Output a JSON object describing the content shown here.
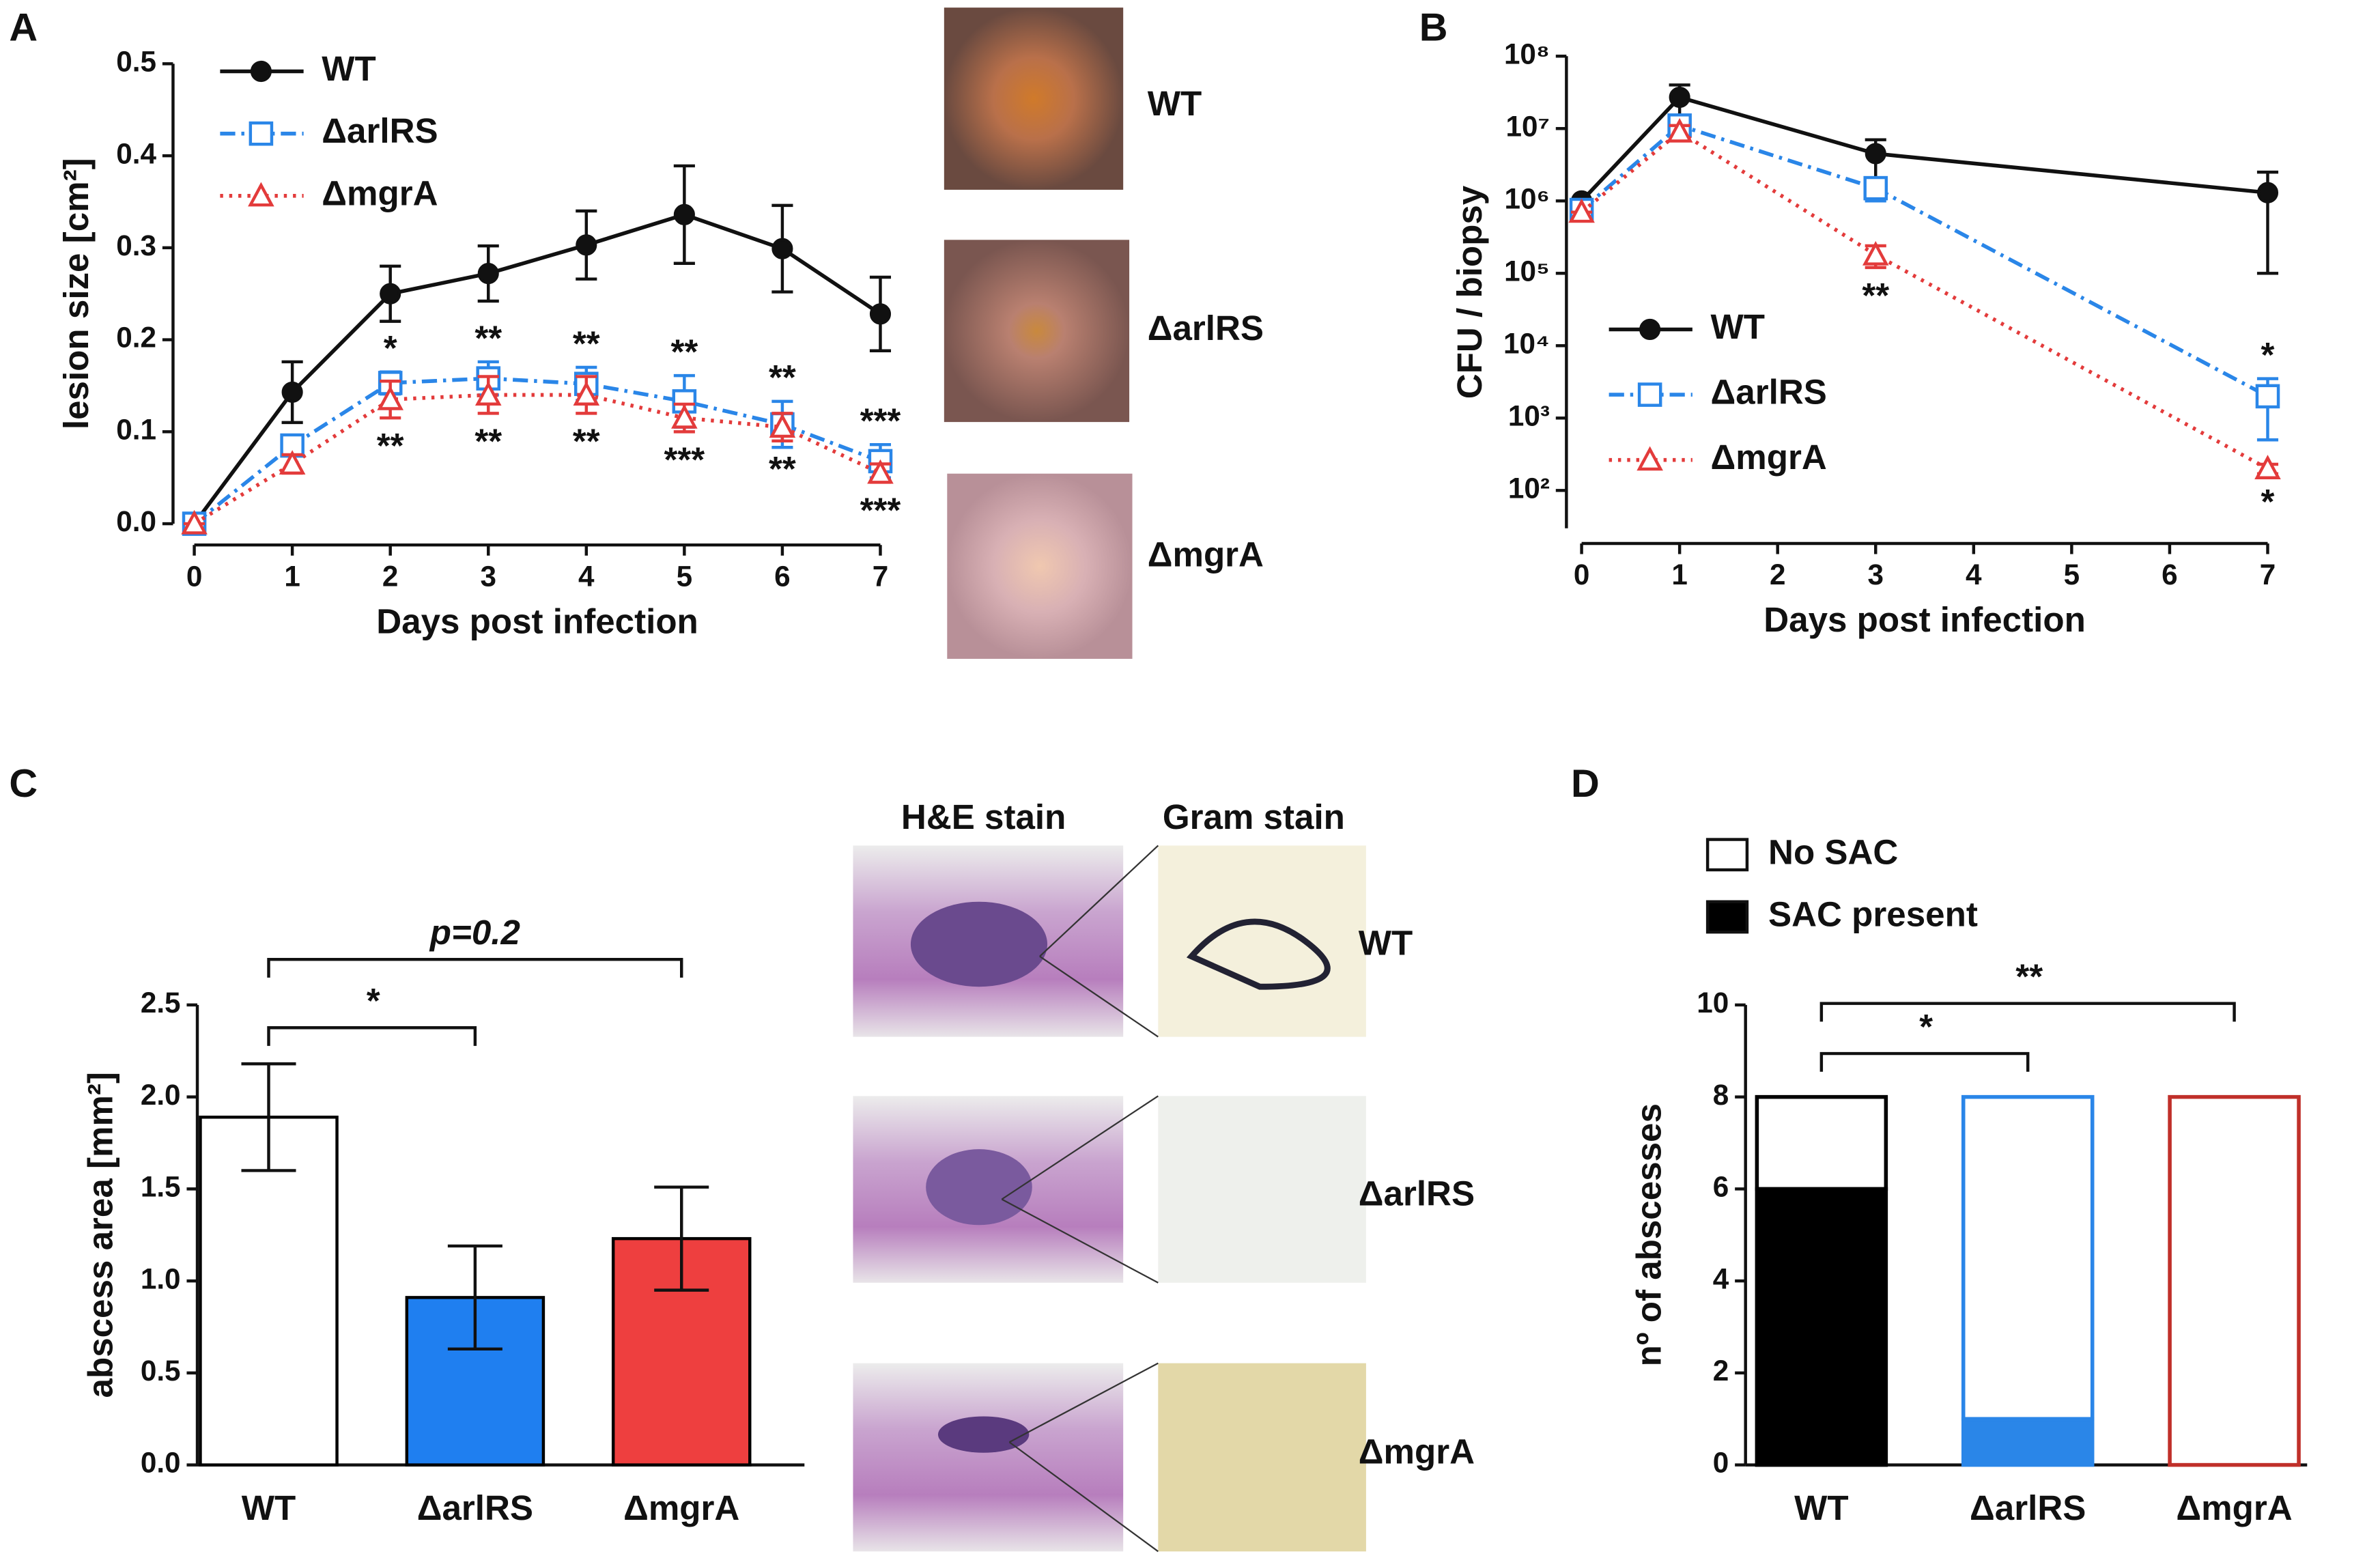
{
  "panels": [
    "A",
    "B",
    "C",
    "D"
  ],
  "photos": {
    "labels": [
      "WT",
      "ΔarlRS",
      "ΔmgrA"
    ]
  },
  "histology": {
    "columns": [
      "H&E stain",
      "Gram stain"
    ],
    "labels": [
      "WT",
      "ΔarlRS",
      "ΔmgrA"
    ]
  },
  "chart_data": [
    {
      "type": "line",
      "xlabel": "Days post infection",
      "ylabel": "lesion size [cm²]",
      "x": [
        0,
        1,
        2,
        3,
        4,
        5,
        6,
        7
      ],
      "xlim": [
        0,
        7
      ],
      "xticks": [
        0,
        1,
        2,
        3,
        4,
        5,
        6,
        7
      ],
      "ylim": [
        0,
        0.5
      ],
      "yticks": [
        {
          "value": 0,
          "label": "0.0"
        },
        0.1,
        0.2,
        0.3,
        0.4,
        0.5
      ],
      "legend": "upper left",
      "series": [
        {
          "name": "WT",
          "color": "#111111",
          "line_style": "solid",
          "marker": "circle",
          "values": [
            0,
            0.143,
            0.25,
            0.272,
            0.303,
            0.336,
            0.299,
            0.228
          ],
          "errors": [
            0,
            0.033,
            0.03,
            0.03,
            0.037,
            0.053,
            0.047,
            0.04
          ]
        },
        {
          "name": "ΔarlRS",
          "color": "#2a86e8",
          "line_style": "dashdot",
          "marker": "square",
          "values": [
            0,
            0.085,
            0.153,
            0.158,
            0.152,
            0.133,
            0.108,
            0.068
          ],
          "errors": [
            0,
            0.01,
            0.012,
            0.018,
            0.018,
            0.028,
            0.025,
            0.018
          ],
          "annotation_side": "above",
          "annotations": [
            null,
            null,
            "*",
            "**",
            "**",
            "**",
            "**",
            "***"
          ]
        },
        {
          "name": "ΔmgrA",
          "color": "#e33b3b",
          "line_style": "dotted",
          "marker": "triangle",
          "values": [
            0,
            0.065,
            0.135,
            0.14,
            0.14,
            0.115,
            0.105,
            0.055
          ],
          "errors": [
            0,
            0.01,
            0.02,
            0.02,
            0.02,
            0.015,
            0.015,
            0.01
          ],
          "annotation_side": "below",
          "annotations": [
            null,
            null,
            "**",
            "**",
            "**",
            "***",
            "**",
            "***"
          ]
        }
      ]
    },
    {
      "type": "line",
      "xlabel": "Days post infection",
      "ylabel": "CFU / biopsy",
      "log_y": true,
      "x": [
        0,
        1,
        3,
        7
      ],
      "xlim": [
        0,
        7
      ],
      "xticks": [
        0,
        1,
        2,
        3,
        4,
        5,
        6,
        7
      ],
      "ylim": [
        30,
        100000000
      ],
      "yticks": [
        {
          "value": 100,
          "label": "10²"
        },
        {
          "value": 1000,
          "label": "10³"
        },
        {
          "value": 10000,
          "label": "10⁴"
        },
        {
          "value": 100000,
          "label": "10⁵"
        },
        {
          "value": 1000000,
          "label": "10⁶"
        },
        {
          "value": 10000000,
          "label": "10⁷"
        },
        {
          "value": 100000000,
          "label": "10⁸"
        }
      ],
      "legend": "lower left",
      "series": [
        {
          "name": "WT",
          "color": "#111111",
          "line_style": "solid",
          "marker": "circle",
          "values": [
            1000000,
            27000000,
            4500000,
            1300000
          ],
          "errors": [
            0,
            13000000,
            2500000,
            1200000
          ]
        },
        {
          "name": "ΔarlRS",
          "color": "#2a86e8",
          "line_style": "dashdot",
          "marker": "square",
          "values": [
            750000,
            11000000,
            1500000,
            2000
          ],
          "errors": [
            0,
            3000000,
            500000,
            1500
          ],
          "annotation_side": "above",
          "annotations": [
            null,
            null,
            null,
            "*"
          ]
        },
        {
          "name": "ΔmgrA",
          "color": "#e33b3b",
          "line_style": "dotted",
          "marker": "triangle",
          "values": [
            700000,
            9000000,
            180000,
            200
          ],
          "errors": [
            0,
            2000000,
            60000,
            30
          ],
          "annotation_side": "below",
          "annotations": [
            null,
            null,
            "**",
            "*"
          ]
        }
      ]
    },
    {
      "type": "bar",
      "ylabel": "abscess area [mm²]",
      "categories": [
        "WT",
        "ΔarlRS",
        "ΔmgrA"
      ],
      "values": [
        1.89,
        0.91,
        1.23
      ],
      "errors": [
        0.29,
        0.28,
        0.28
      ],
      "colors": [
        "#ffffff",
        "#1f7ff0",
        "#ee3f3f"
      ],
      "edge_color": "#000000",
      "ylim": [
        0,
        2.5
      ],
      "yticks": [
        {
          "value": 0,
          "label": "0.0"
        },
        0.5,
        {
          "value": 1,
          "label": "1.0"
        },
        1.5,
        {
          "value": 2,
          "label": "2.0"
        },
        2.5
      ],
      "comparisons": [
        {
          "pair": [
            0,
            1
          ],
          "label": "*"
        },
        {
          "pair": [
            0,
            2
          ],
          "label": "p=0.2"
        }
      ]
    },
    {
      "type": "stacked_bar",
      "ylabel": "nº of abscesses",
      "categories": [
        "WT",
        "ΔarlRS",
        "ΔmgrA"
      ],
      "edge_colors": [
        "#000000",
        "#2a86e8",
        "#c0302a"
      ],
      "series": [
        {
          "name": "SAC present",
          "color": "#000000",
          "colors": [
            "#000000",
            "#2a86e8",
            "#c0302a"
          ],
          "values": [
            6,
            1,
            0
          ]
        },
        {
          "name": "No SAC",
          "color": "#ffffff",
          "values": [
            2,
            7,
            8
          ]
        }
      ],
      "ylim": [
        0,
        10
      ],
      "yticks": [
        0,
        2,
        4,
        6,
        8,
        10
      ],
      "comparisons": [
        {
          "pair": [
            0,
            1
          ],
          "label": "*"
        },
        {
          "pair": [
            0,
            2
          ],
          "label": "**"
        }
      ]
    }
  ]
}
